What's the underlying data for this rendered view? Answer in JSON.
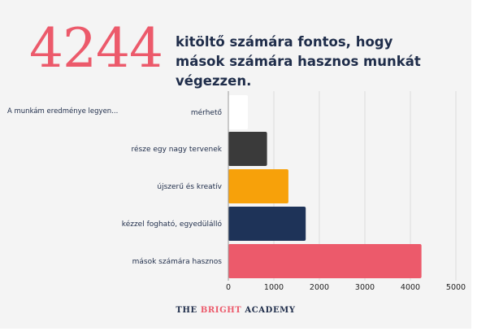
{
  "header": {
    "big_number": "4244",
    "headline": "kitöltő számára fontos, hogy mások számára hasznos munkát végezzen."
  },
  "chart_data": {
    "type": "bar",
    "orientation": "horizontal",
    "title": "",
    "annotation": "A munkám eredménye legyen...",
    "categories": [
      "mérhető",
      "része egy nagy tervenek",
      "újszerű és kreatív",
      "kézzel fogható, egyedülálló",
      "mások számára hasznos"
    ],
    "values": [
      430,
      850,
      1320,
      1700,
      4244
    ],
    "colors": [
      "#ffffff",
      "#3a3a3a",
      "#f7a10a",
      "#1e3358",
      "#ec5a6b"
    ],
    "xlim": [
      0,
      5000
    ],
    "xticks": [
      0,
      1000,
      2000,
      3000,
      4000,
      5000
    ],
    "grid": true,
    "legend": "none"
  },
  "footer": {
    "part1": "THE ",
    "part2": "BRIGHT",
    "part3": " ACADEMY"
  }
}
